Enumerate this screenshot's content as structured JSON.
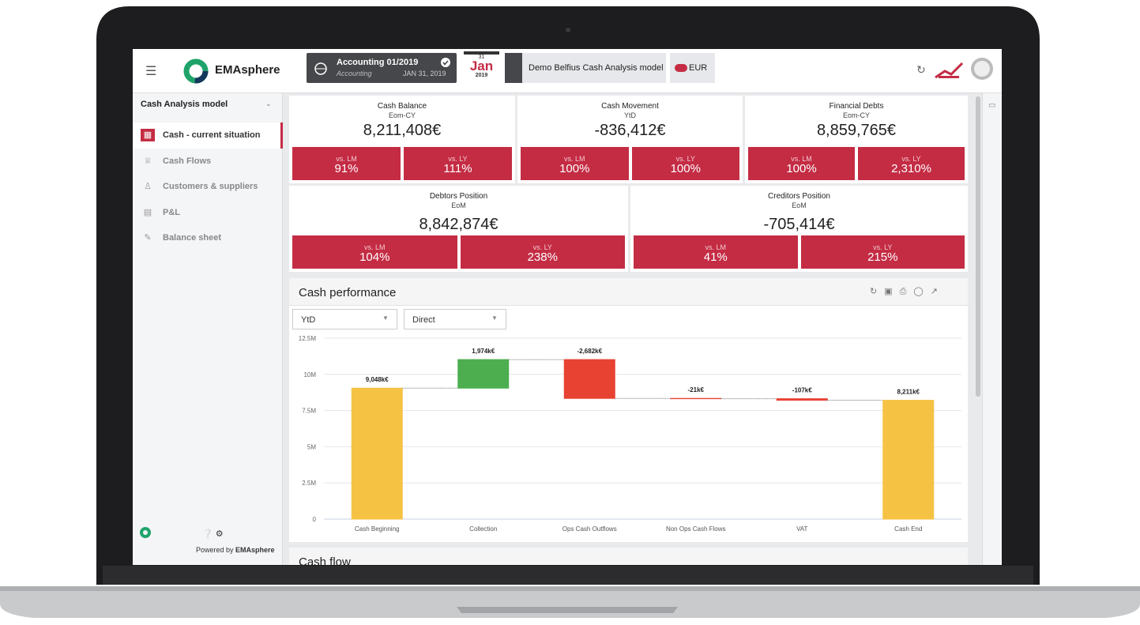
{
  "header": {
    "brand": "EMAsphere",
    "period_title": "Accounting 01/2019",
    "period_subtitle": "Accounting",
    "period_date": "JAN 31, 2019",
    "calendar_day": "31",
    "calendar_month": "Jan",
    "calendar_year": "2019",
    "model": "Demo Belfius Cash Analysis model",
    "currency": "EUR"
  },
  "sidebar": {
    "title": "Cash Analysis model",
    "items": [
      "Cash - current situation",
      "Cash Flows",
      "Customers & suppliers",
      "P&L",
      "Balance sheet"
    ],
    "footer_text": "Powered by",
    "footer_brand": "EMAsphere"
  },
  "kpis": [
    {
      "title": "Cash Balance",
      "subtitle": "Eom-CY",
      "value": "8,211,408€",
      "comparisons": [
        {
          "label": "vs. LM",
          "value": "91%"
        },
        {
          "label": "vs. LY",
          "value": "111%"
        }
      ]
    },
    {
      "title": "Cash Movement",
      "subtitle": "YtD",
      "value": "-836,412€",
      "comparisons": [
        {
          "label": "vs. LM",
          "value": "100%"
        },
        {
          "label": "vs. LY",
          "value": "100%"
        }
      ]
    },
    {
      "title": "Financial Debts",
      "subtitle": "Eom-CY",
      "value": "8,859,765€",
      "comparisons": [
        {
          "label": "vs. LM",
          "value": "100%"
        },
        {
          "label": "vs. LY",
          "value": "2,310%"
        }
      ]
    },
    {
      "title": "Debtors Position",
      "subtitle": "EoM",
      "value": "8,842,874€",
      "comparisons": [
        {
          "label": "vs. LM",
          "value": "104%"
        },
        {
          "label": "vs. LY",
          "value": "238%"
        }
      ]
    },
    {
      "title": "Creditors Position",
      "subtitle": "EoM",
      "value": "-705,414€",
      "comparisons": [
        {
          "label": "vs. LM",
          "value": "41%"
        },
        {
          "label": "vs. LY",
          "value": "215%"
        }
      ]
    }
  ],
  "panel": {
    "title": "Cash performance",
    "filters": [
      "YtD",
      "Direct"
    ]
  },
  "chart_data": {
    "type": "waterfall",
    "categories": [
      "Cash Beginning",
      "Collection",
      "Ops Cash Outflows",
      "Non Ops Cash Flows",
      "VAT",
      "Cash End"
    ],
    "values": [
      9.048,
      1.974,
      -2.682,
      -0.021,
      -0.107,
      8.211
    ],
    "value_labels": [
      "9,048k€",
      "1,974k€",
      "-2,682k€",
      "-21k€",
      "-107k€",
      "8,211k€"
    ],
    "colors": {
      "total": "#f6c244",
      "increase": "#4cae4f",
      "decrease": "#e84232"
    },
    "ylim": [
      0,
      12.5
    ],
    "yticks": [
      0,
      {
        "value": 2.5,
        "label": "2.5M"
      },
      {
        "value": 5,
        "label": "5M"
      },
      {
        "value": 7.5,
        "label": "7.5M"
      },
      {
        "value": 10,
        "label": "10M"
      },
      {
        "value": 12.5,
        "label": "12.5M"
      }
    ],
    "grid": true
  },
  "next_panel": {
    "title": "Cash flow"
  }
}
